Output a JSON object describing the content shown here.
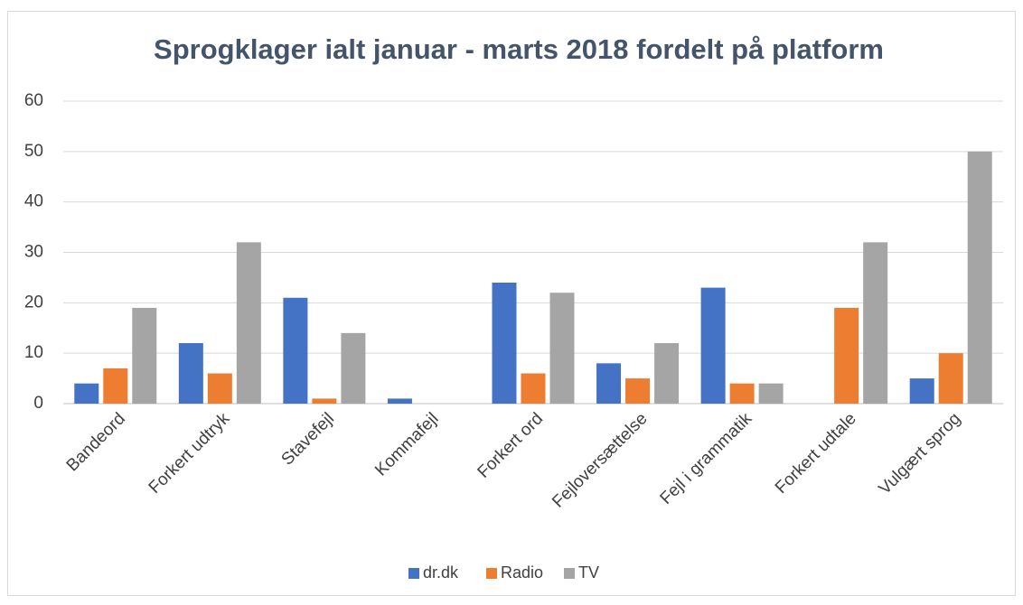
{
  "chart_data": {
    "type": "bar",
    "title": "Sprogklager ialt januar - marts 2018 fordelt på platform",
    "categories": [
      "Bandeord",
      "Forkert udtryk",
      "Stavefejl",
      "Kommafejl",
      "Forkert ord",
      "Fejloversættelse",
      "Fejl i grammatik",
      "Forkert udtale",
      "Vulgært sprog"
    ],
    "series": [
      {
        "name": "dr.dk",
        "color": "#4472c4",
        "values": [
          4,
          12,
          21,
          1,
          24,
          8,
          23,
          0,
          5
        ]
      },
      {
        "name": "Radio",
        "color": "#ed7d31",
        "values": [
          7,
          6,
          1,
          0,
          6,
          5,
          4,
          19,
          10
        ]
      },
      {
        "name": "TV",
        "color": "#a5a5a5",
        "values": [
          19,
          32,
          14,
          0,
          22,
          12,
          4,
          32,
          50
        ]
      }
    ],
    "ylim": [
      0,
      60
    ],
    "yticks": [
      0,
      10,
      20,
      30,
      40,
      50,
      60
    ],
    "grid": true,
    "legend": "bottom"
  }
}
